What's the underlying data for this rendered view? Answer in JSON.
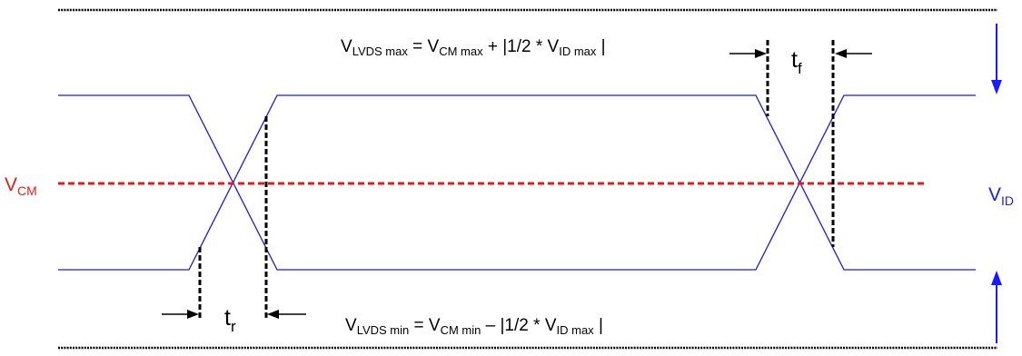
{
  "equations": {
    "top": {
      "v1": "V",
      "s1": "LVDS max",
      "eq": " = ",
      "v2": "V",
      "s2": "CM max",
      "mid": " + |1/2 * ",
      "v3": "V",
      "s3": "ID max",
      "end": " |"
    },
    "bottom": {
      "v1": "V",
      "s1": "LVDS min",
      "eq": " = ",
      "v2": "V",
      "s2": "CM min",
      "mid": " – |1/2 * ",
      "v3": "V",
      "s3": "ID max",
      "end": " |"
    }
  },
  "labels": {
    "vcm": {
      "main": "V",
      "sub": "CM"
    },
    "vid": {
      "main": "V",
      "sub": "ID"
    },
    "tf": {
      "main": "t",
      "sub": "f"
    },
    "tr": {
      "main": "t",
      "sub": "r"
    }
  },
  "colors": {
    "signal": "#1a1adc",
    "common_mode": "#e31b1b",
    "marker": "#000000",
    "arrow": "#1a1aff"
  }
}
